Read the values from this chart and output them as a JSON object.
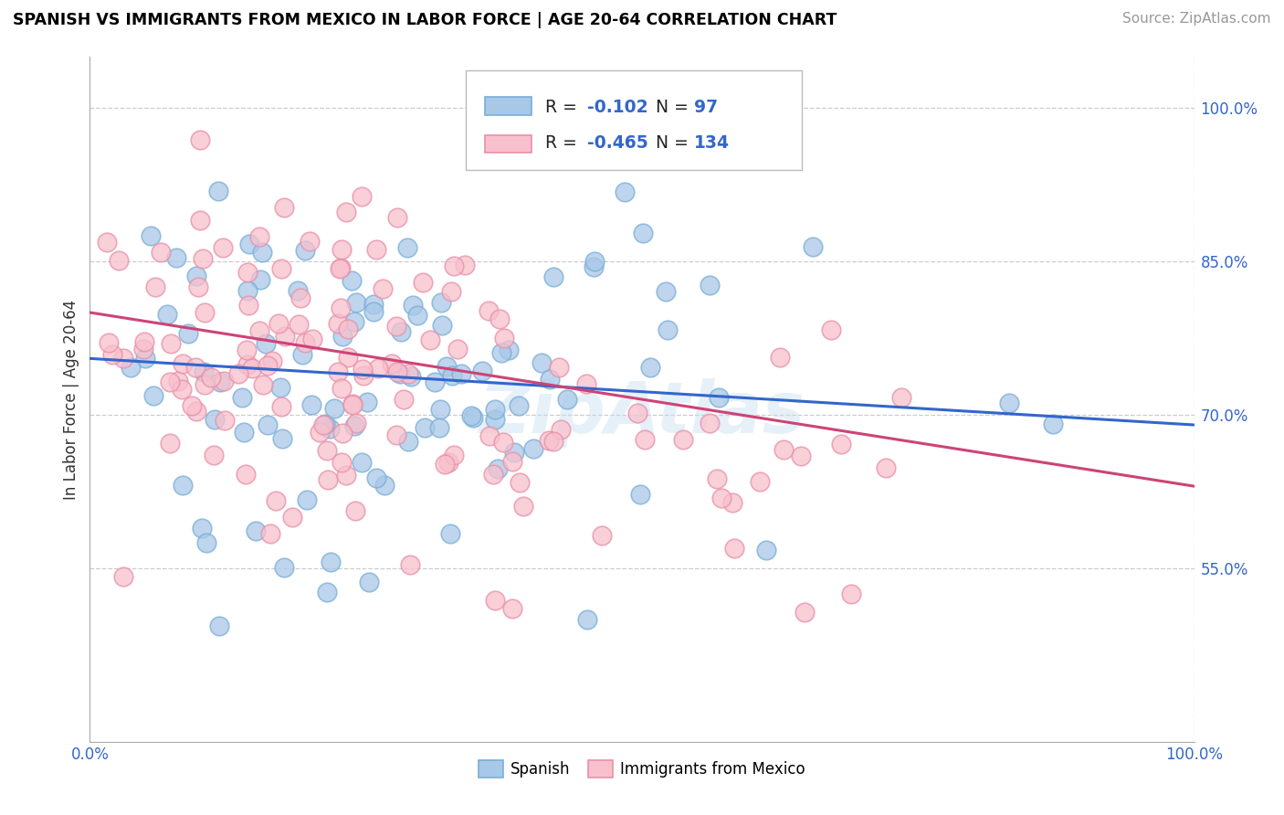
{
  "title": "SPANISH VS IMMIGRANTS FROM MEXICO IN LABOR FORCE | AGE 20-64 CORRELATION CHART",
  "source_text": "Source: ZipAtlas.com",
  "ylabel": "In Labor Force | Age 20-64",
  "x_tick_labels": [
    "0.0%",
    "100.0%"
  ],
  "y_tick_values": [
    0.55,
    0.7,
    0.85,
    1.0
  ],
  "y_tick_labels": [
    "55.0%",
    "70.0%",
    "85.0%",
    "100.0%"
  ],
  "xlim": [
    0.0,
    1.0
  ],
  "ylim": [
    0.38,
    1.05
  ],
  "watermark": "ZipAtlas",
  "blue_R": -0.102,
  "blue_N": 97,
  "pink_R": -0.465,
  "pink_N": 134,
  "blue_line_start_y": 0.755,
  "blue_line_end_y": 0.69,
  "pink_line_start_y": 0.8,
  "pink_line_end_y": 0.63,
  "blue_color": "#a8c8e8",
  "blue_edge_color": "#7aaed6",
  "pink_color": "#f8c0cc",
  "pink_edge_color": "#e890a8",
  "blue_line_color": "#3366cc",
  "pink_line_color": "#cc4477",
  "grid_color": "#cccccc",
  "grid_style": "--",
  "background_color": "#ffffff",
  "legend_blue_R_val": "-0.102",
  "legend_blue_N_val": "97",
  "legend_pink_R_val": "-0.465",
  "legend_pink_N_val": "134",
  "bottom_legend": [
    "Spanish",
    "Immigrants from Mexico"
  ],
  "tick_color": "#3366cc",
  "title_color": "#000000",
  "source_color": "#999999",
  "legend_text_color": "#000000",
  "legend_val_color": "#3366cc"
}
